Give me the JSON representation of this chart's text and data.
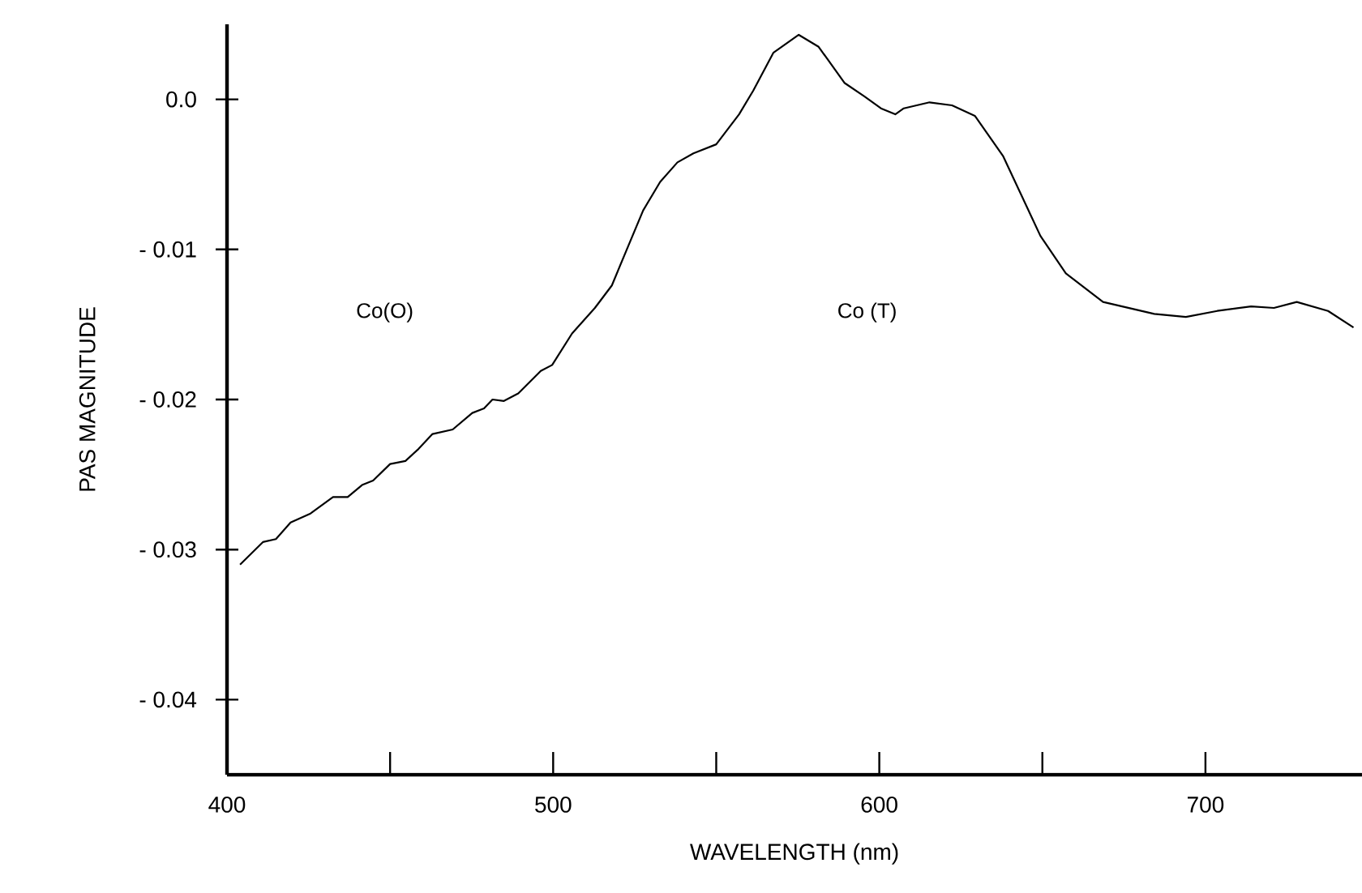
{
  "chart_data": {
    "type": "line",
    "xlabel": "WAVELENGTH (nm)",
    "ylabel": "PAS MAGNITUDE",
    "xlim": [
      400,
      748
    ],
    "ylim": [
      -0.045,
      0.005
    ],
    "xticks": [
      {
        "value": 400,
        "label": "400"
      },
      {
        "value": 450,
        "label": null
      },
      {
        "value": 500,
        "label": "500"
      },
      {
        "value": 550,
        "label": null
      },
      {
        "value": 600,
        "label": "600"
      },
      {
        "value": 650,
        "label": null
      },
      {
        "value": 700,
        "label": "700"
      }
    ],
    "yticks": [
      {
        "value": 0,
        "label": "0.0"
      },
      {
        "value": -0.01,
        "label": "- 0.01"
      },
      {
        "value": -0.02,
        "label": "- 0.02"
      },
      {
        "value": -0.03,
        "label": "- 0.03"
      },
      {
        "value": -0.04,
        "label": "- 0.04"
      }
    ],
    "annotations": [
      "Co(O)",
      "Co (T)"
    ],
    "series": [
      {
        "color": "#000000",
        "x": [
          404,
          411,
          415,
          419.5,
          425.6,
          432.5,
          437,
          441.4,
          444.8,
          450,
          454.7,
          458.7,
          463,
          469.2,
          475.2,
          478.8,
          481.4,
          484.9,
          489.3,
          496.2,
          499.7,
          505.8,
          512.8,
          518,
          522.4,
          527.6,
          532.8,
          538.1,
          543,
          550,
          557,
          561.4,
          567.5,
          575.3,
          581.4,
          589.3,
          595.4,
          600.5,
          604.9,
          607.5,
          615.4,
          622.3,
          629.3,
          638,
          649.4,
          657.2,
          668.6,
          684.3,
          694,
          703.6,
          714,
          721,
          728,
          737.6,
          745.4
        ],
        "values": [
          -0.031,
          -0.0295,
          -0.0293,
          -0.0282,
          -0.0276,
          -0.0265,
          -0.0265,
          -0.0257,
          -0.0254,
          -0.0243,
          -0.0241,
          -0.0233,
          -0.0223,
          -0.022,
          -0.0209,
          -0.0206,
          -0.02,
          -0.0201,
          -0.0196,
          -0.0181,
          -0.0177,
          -0.0156,
          -0.0139,
          -0.0124,
          -0.0101,
          -0.0074,
          -0.0055,
          -0.0042,
          -0.0036,
          -0.003,
          -0.001,
          0.0006,
          0.0031,
          0.0043,
          0.0035,
          0.0011,
          0.0002,
          -0.0006,
          -0.001,
          -0.0006,
          -0.0002,
          -0.0004,
          -0.0011,
          -0.0038,
          -0.0091,
          -0.0116,
          -0.0135,
          -0.0143,
          -0.0145,
          -0.0141,
          -0.0138,
          -0.0139,
          -0.0135,
          -0.0141,
          -0.0152
        ]
      }
    ]
  }
}
